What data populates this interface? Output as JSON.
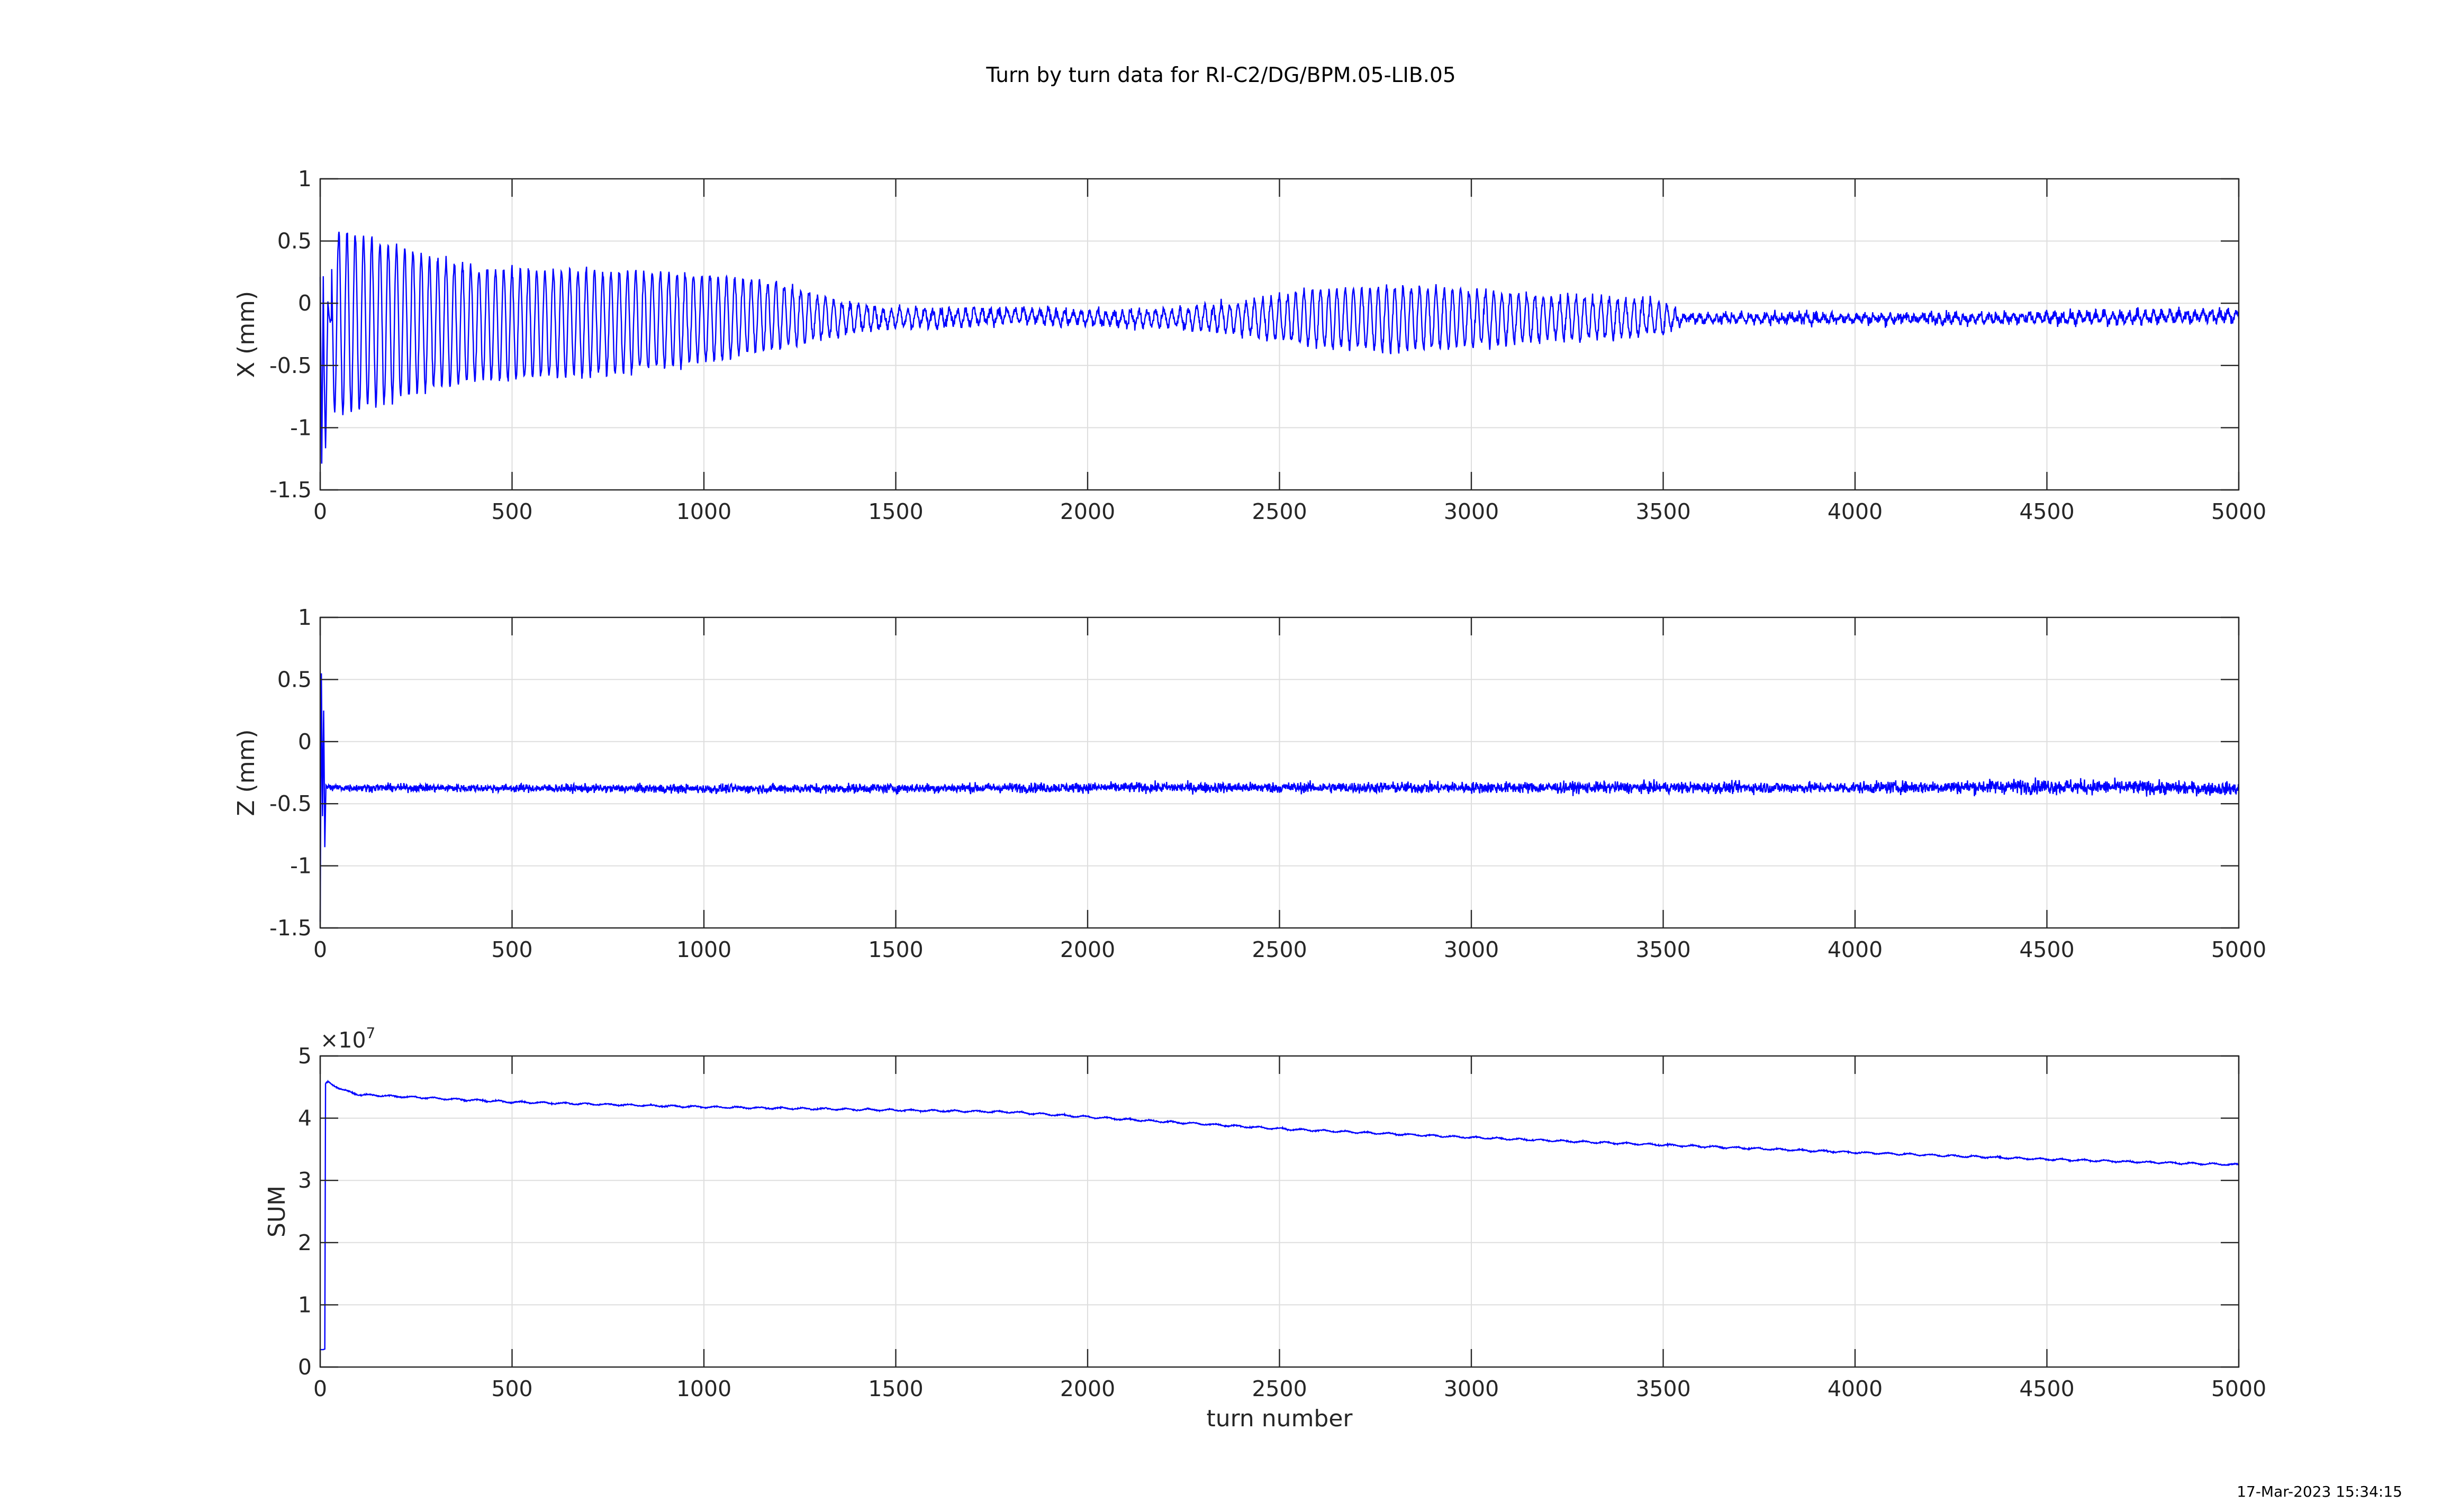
{
  "figure": {
    "title": "Turn by turn data for RI-C2/DG/BPM.05-LIB.05",
    "timestamp": "17-Mar-2023 15:34:15"
  },
  "colors": {
    "line": "#0000FF",
    "grid": "#DEDEDE",
    "axis": "#262626",
    "background": "#FFFFFF"
  },
  "chart_data": [
    {
      "type": "line",
      "ylabel": "X (mm)",
      "xlabel": "",
      "xlim": [
        0,
        5000
      ],
      "ylim": [
        -1.5,
        1
      ],
      "xticks": [
        0,
        500,
        1000,
        1500,
        2000,
        2500,
        3000,
        3500,
        4000,
        4500,
        5000
      ],
      "yticks": [
        -1.5,
        -1,
        -0.5,
        0,
        0.5,
        1
      ],
      "ytick_labels": [
        "-1.5",
        "-1",
        "-0.5",
        "0",
        "0.5",
        "1"
      ],
      "grid": true,
      "series": [
        {
          "x": [
            0,
            4,
            8,
            10,
            14,
            20,
            25,
            30,
            40,
            50,
            80,
            200,
            400,
            600,
            800,
            1000,
            1200,
            1400,
            1500,
            1800,
            2000,
            2200,
            2400,
            2600,
            2800,
            3000,
            3200,
            3400,
            3500,
            3550,
            4000,
            4500,
            5000
          ],
          "amplitude": [
            0,
            0,
            0,
            0,
            0,
            0,
            0,
            0.65,
            0.72,
            0.72,
            0.72,
            0.6,
            0.45,
            0.42,
            0.4,
            0.35,
            0.25,
            0.1,
            0.07,
            0.05,
            0.05,
            0.06,
            0.12,
            0.22,
            0.25,
            0.22,
            0.17,
            0.15,
            0.12,
            0.03,
            0.02,
            0.03,
            0.04
          ],
          "baseline": [
            0.2,
            -1.3,
            0.2,
            -0.5,
            -1.2,
            0,
            -0.15,
            -0.15,
            -0.15,
            -0.15,
            -0.15,
            -0.15,
            -0.17,
            -0.17,
            -0.15,
            -0.12,
            -0.1,
            -0.12,
            -0.12,
            -0.1,
            -0.12,
            -0.12,
            -0.12,
            -0.12,
            -0.12,
            -0.12,
            -0.12,
            -0.12,
            -0.12,
            -0.12,
            -0.12,
            -0.12,
            -0.1
          ],
          "tune_turns_per_cycle": 21.5,
          "noise": 0.04
        }
      ]
    },
    {
      "type": "line",
      "ylabel": "Z (mm)",
      "xlabel": "",
      "xlim": [
        0,
        5000
      ],
      "ylim": [
        -1.5,
        1
      ],
      "xticks": [
        0,
        500,
        1000,
        1500,
        2000,
        2500,
        3000,
        3500,
        4000,
        4500,
        5000
      ],
      "yticks": [
        -1.5,
        -1,
        -0.5,
        0,
        0.5,
        1
      ],
      "ytick_labels": [
        "-1.5",
        "-1",
        "-0.5",
        "0",
        "0.5",
        "1"
      ],
      "grid": true,
      "series": [
        {
          "x": [
            0,
            3,
            6,
            9,
            12,
            15,
            20,
            30,
            1000,
            2000,
            3000,
            4000,
            4500,
            5000
          ],
          "baseline": [
            -1.45,
            0.55,
            -0.6,
            0.25,
            -0.85,
            -0.35,
            -0.37,
            -0.37,
            -0.38,
            -0.37,
            -0.37,
            -0.37,
            -0.36,
            -0.38
          ],
          "noise": [
            0,
            0,
            0,
            0,
            0,
            0,
            0.03,
            0.03,
            0.035,
            0.04,
            0.045,
            0.045,
            0.06,
            0.05
          ]
        }
      ]
    },
    {
      "type": "line",
      "ylabel": "SUM",
      "xlabel": "turn number",
      "xlim": [
        0,
        5000
      ],
      "ylim": [
        0,
        50000000
      ],
      "exponent_label": "×10",
      "exponent_power": "7",
      "xticks": [
        0,
        500,
        1000,
        1500,
        2000,
        2500,
        3000,
        3500,
        4000,
        4500,
        5000
      ],
      "yticks": [
        0,
        10000000,
        20000000,
        30000000,
        40000000,
        50000000
      ],
      "ytick_labels": [
        "0",
        "1",
        "2",
        "3",
        "4",
        "5"
      ],
      "grid": true,
      "series": [
        {
          "x": [
            0,
            8,
            12,
            14,
            20,
            60,
            100,
            500,
            1000,
            1500,
            1800,
            2000,
            2500,
            3000,
            3500,
            4000,
            4500,
            5000
          ],
          "y": [
            2800000,
            2800000,
            2900000,
            45500000,
            45800000,
            44500000,
            43800000,
            42600000,
            41800000,
            41300000,
            41000000,
            40200000,
            38300000,
            36900000,
            35700000,
            34500000,
            33400000,
            32500000
          ],
          "noise": 90000
        }
      ]
    }
  ]
}
